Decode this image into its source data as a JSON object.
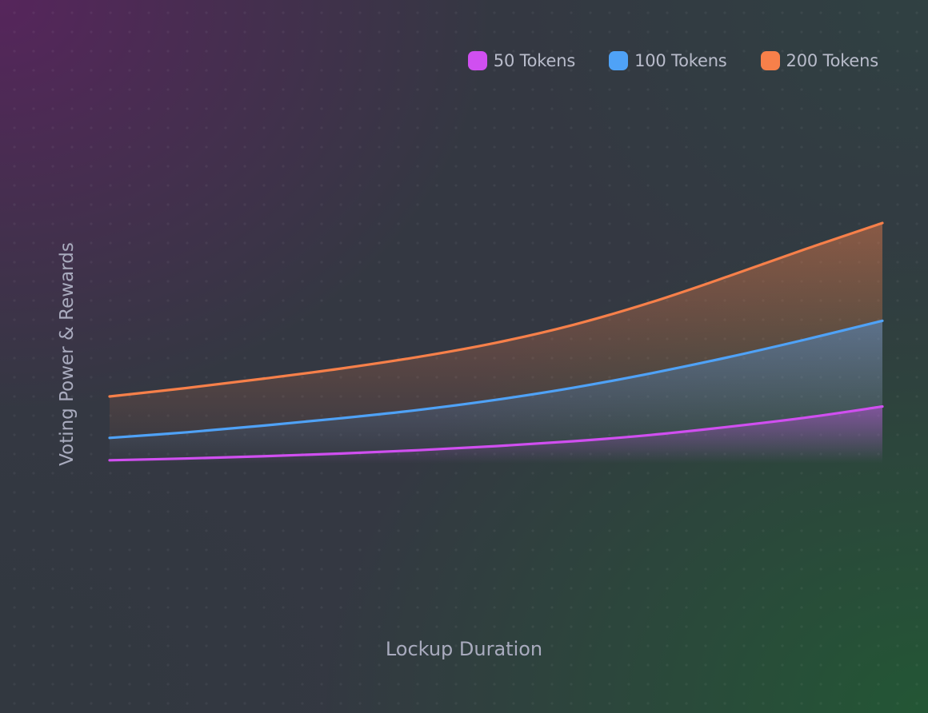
{
  "chart_data": {
    "type": "area",
    "title": "",
    "xlabel": "Lockup Duration",
    "ylabel": "Voting Power & Rewards",
    "x": [
      0,
      1,
      2,
      3,
      4,
      5,
      6,
      7,
      8,
      9,
      10
    ],
    "xlim": [
      0,
      10
    ],
    "ylim": [
      0,
      100
    ],
    "grid": false,
    "legend_position": "top-right",
    "series": [
      {
        "name": "50 Tokens",
        "color": "#d04ff0",
        "values": [
          1.5,
          2.3,
          3.3,
          4.5,
          6.0,
          7.8,
          10.0,
          12.8,
          16.4,
          20.5,
          25.5
        ]
      },
      {
        "name": "100 Tokens",
        "color": "#4fa2f7",
        "values": [
          11.5,
          14.0,
          17.0,
          20.3,
          24.0,
          28.5,
          33.9,
          40.3,
          47.5,
          55.4,
          63.8
        ]
      },
      {
        "name": "200 Tokens",
        "color": "#f7804a",
        "values": [
          30.0,
          33.8,
          38.0,
          42.5,
          47.7,
          54.0,
          62.0,
          72.0,
          83.6,
          95.8,
          107.5
        ]
      }
    ]
  }
}
